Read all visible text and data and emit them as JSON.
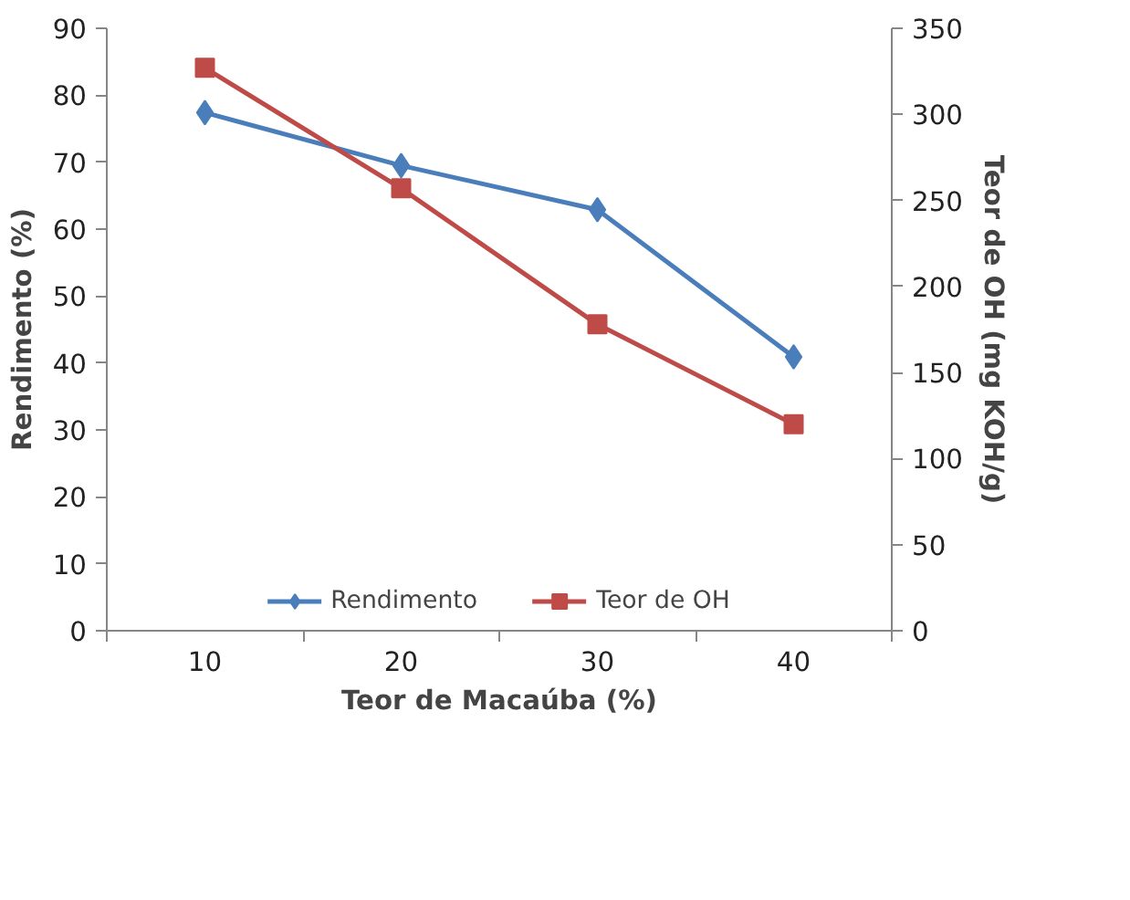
{
  "chart_data": {
    "type": "line",
    "xlabel": "Teor de Macaúba (%)",
    "ylabel": "Rendimento (%)",
    "y2label": "Teor de OH (mg KOH/g)",
    "categories": [
      "10",
      "20",
      "30",
      "40"
    ],
    "series": [
      {
        "name": "Rendimento",
        "color": "#4a7ebb",
        "marker": "diamond",
        "values": [
          77.4,
          69.5,
          62.9,
          40.9
        ]
      },
      {
        "name": "Teor de OH",
        "color": "#be4b48",
        "marker": "square",
        "axis": "y2",
        "values": [
          327,
          257,
          178,
          120
        ]
      }
    ],
    "ylim": [
      0,
      90
    ],
    "yticks": [
      0,
      10,
      20,
      30,
      40,
      50,
      60,
      70,
      80,
      90
    ],
    "y2lim": [
      0,
      350
    ],
    "y2ticks": [
      0,
      50,
      100,
      150,
      200,
      250,
      300,
      350
    ],
    "grid": false,
    "legend": "bottom",
    "line_style": "solid"
  }
}
